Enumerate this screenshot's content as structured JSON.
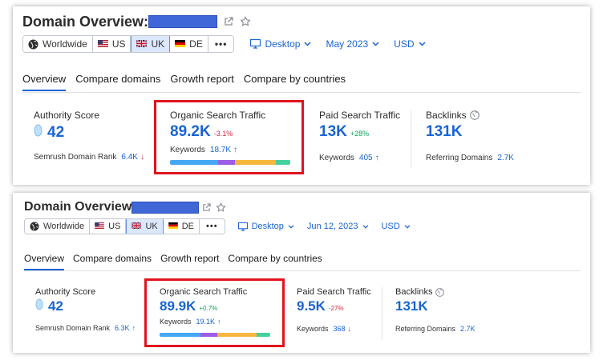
{
  "colors": {
    "accent": "#1864d4",
    "positive": "#13a05a",
    "negative": "#d9263d",
    "highlight": "#e0141f",
    "redaction": "#3f67d8"
  },
  "bar_colors": [
    "#45a8f4",
    "#9b5de5",
    "#f6b73c",
    "#45d0a0"
  ],
  "panel1": {
    "title": "Domain Overview:",
    "filters": {
      "worldwide": "Worldwide",
      "us": "US",
      "uk": "UK",
      "de": "DE",
      "more": "•••",
      "device": "Desktop",
      "date": "May 2023",
      "currency": "USD"
    },
    "tabs": [
      "Overview",
      "Compare domains",
      "Growth report",
      "Compare by countries"
    ],
    "authority": {
      "label": "Authority Score",
      "value": "42",
      "rank_label": "Semrush Domain Rank",
      "rank_value": "6.4K",
      "rank_arrow": "↓"
    },
    "organic": {
      "label": "Organic Search Traffic",
      "value": "89.2K",
      "delta": "-3.1%",
      "kw_label": "Keywords",
      "kw_value": "18.7K",
      "kw_arrow": "↑",
      "bar_shares": [
        0.4,
        0.14,
        0.34,
        0.12
      ]
    },
    "paid": {
      "label": "Paid Search Traffic",
      "value": "13K",
      "delta": "+28%",
      "kw_label": "Keywords",
      "kw_value": "405",
      "kw_arrow": "↑"
    },
    "backlinks": {
      "label": "Backlinks",
      "value": "131K",
      "ref_label": "Referring Domains",
      "ref_value": "2.7K"
    }
  },
  "panel2": {
    "title": "Domain Overview",
    "filters": {
      "worldwide": "Worldwide",
      "us": "US",
      "uk": "UK",
      "de": "DE",
      "more": "•••",
      "device": "Desktop",
      "date": "Jun 12, 2023",
      "currency": "USD"
    },
    "tabs": [
      "Overview",
      "Compare domains",
      "Growth report",
      "Compare by countries"
    ],
    "authority": {
      "label": "Authority Score",
      "value": "42",
      "rank_label": "Semrush Domain Rank",
      "rank_value": "6.3K",
      "rank_arrow": "↑"
    },
    "organic": {
      "label": "Organic Search Traffic",
      "value": "89.9K",
      "delta": "+0.7%",
      "kw_label": "Keywords",
      "kw_value": "19.1K",
      "kw_arrow": "↑",
      "bar_shares": [
        0.37,
        0.15,
        0.36,
        0.12
      ]
    },
    "paid": {
      "label": "Paid Search Traffic",
      "value": "9.5K",
      "delta": "-27%",
      "kw_label": "Keywords",
      "kw_value": "368",
      "kw_arrow": "↓"
    },
    "backlinks": {
      "label": "Backlinks",
      "value": "131K",
      "ref_label": "Referring Domains",
      "ref_value": "2.7K"
    }
  }
}
